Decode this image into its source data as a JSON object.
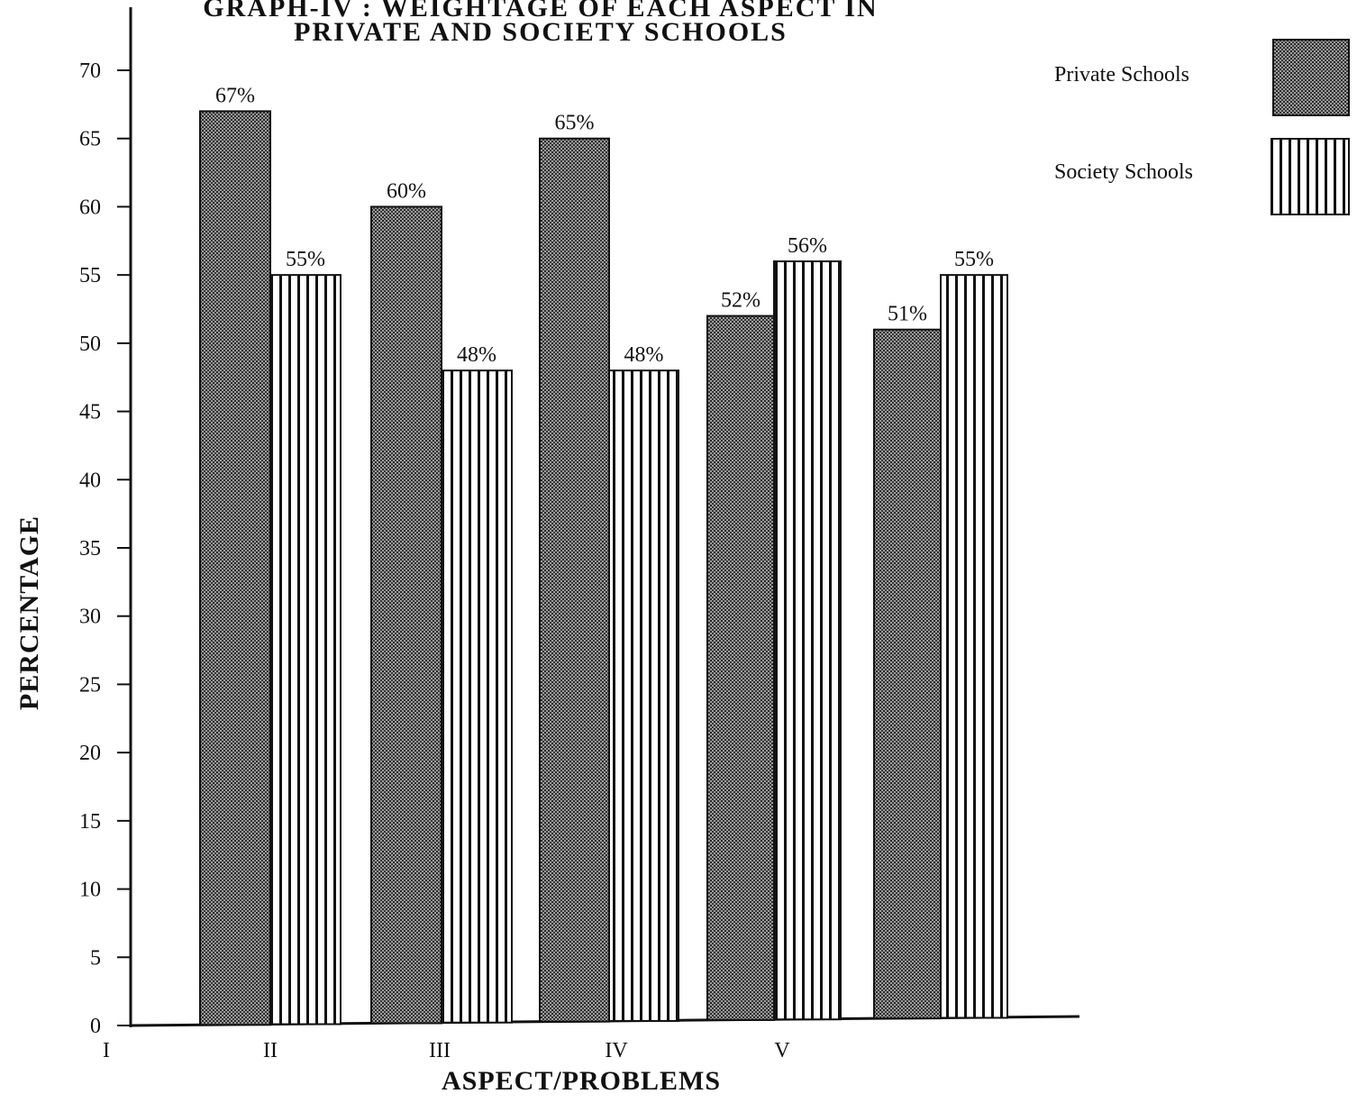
{
  "chart_data": {
    "type": "bar",
    "title_lines": [
      "GRAPH-IV : WEIGHTAGE OF EACH ASPECT IN",
      "PRIVATE AND SOCIETY SCHOOLS"
    ],
    "xlabel": "ASPECT/PROBLEMS",
    "ylabel": "PERCENTAGE",
    "ylim": [
      0,
      70
    ],
    "yticks": [
      0,
      5,
      10,
      15,
      20,
      25,
      30,
      35,
      40,
      45,
      50,
      55,
      60,
      65,
      70
    ],
    "categories": [
      "I",
      "II",
      "III",
      "IV",
      "V"
    ],
    "series": [
      {
        "name": "Private Schools",
        "values": [
          67,
          60,
          65,
          52,
          51
        ],
        "labels": [
          "67%",
          "60%",
          "65%",
          "52%",
          "51%"
        ],
        "pattern": "dense-stipple",
        "color": "#555555"
      },
      {
        "name": "Society Schools",
        "values": [
          55,
          48,
          48,
          56,
          55
        ],
        "labels": [
          "55%",
          "48%",
          "48%",
          "56%",
          "55%"
        ],
        "pattern": "vertical-lines",
        "color": "#111111"
      }
    ],
    "legend_position": "top-right",
    "grid": false
  }
}
